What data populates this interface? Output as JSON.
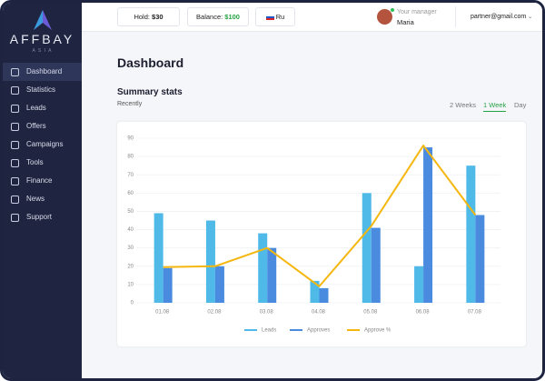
{
  "sidebar": {
    "logo": "AFFBAY",
    "logo_sub": "A S I A",
    "items": [
      "Dashboard",
      "Statistics",
      "Leads",
      "Offers",
      "Campaigns",
      "Tools",
      "Finance",
      "News",
      "Support"
    ]
  },
  "header": {
    "hold_label": "Hold:",
    "hold_value": "$30",
    "balance_label": "Balance:",
    "balance_value": "$100",
    "language": "Ru",
    "manager_label": "Your manager",
    "manager_name": "Maria",
    "email": "partner@gmail.com"
  },
  "page": {
    "title": "Dashboard",
    "section_title": "Summary stats",
    "section_subtitle": "Recently",
    "tabs": [
      "2 Weeks",
      "1 Week",
      "Day"
    ]
  },
  "chart_data": {
    "type": "bar",
    "categories": [
      "01.08",
      "02.08",
      "03.08",
      "04.08",
      "05.08",
      "06.08",
      "07.08"
    ],
    "series": [
      {
        "name": "Leads",
        "color": "#4fb9e8",
        "type": "bar",
        "values": [
          49,
          45,
          38,
          12,
          60,
          20,
          75
        ]
      },
      {
        "name": "Approves",
        "color": "#4a8be0",
        "type": "bar",
        "values": [
          19,
          20,
          30,
          8,
          41,
          85,
          48
        ]
      },
      {
        "name": "Approve %",
        "color": "#f5b70f",
        "type": "line",
        "values": [
          19.5,
          20,
          30,
          9,
          42,
          86,
          48
        ]
      }
    ],
    "ylim": [
      0,
      90
    ],
    "yticks": [
      0,
      10,
      20,
      30,
      40,
      50,
      60,
      70,
      80,
      90
    ],
    "grid": true,
    "legend": "bottom"
  }
}
